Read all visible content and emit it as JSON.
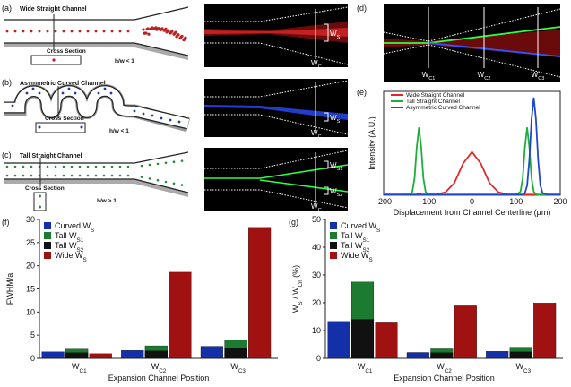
{
  "panels": {
    "a": {
      "label": "(a)",
      "title": "Wide Straight Channel",
      "cross_section": "Cross Section",
      "ratio": "h/w < 1",
      "ws": [
        "W",
        "S"
      ],
      "wc": [
        "W",
        "C"
      ]
    },
    "b": {
      "label": "(b)",
      "title": "Asymmetric Curved Channel",
      "cross_section": "Cross Section",
      "ratio": "h/w < 1",
      "ws": [
        "W",
        "S"
      ],
      "wc": [
        "W",
        "C"
      ]
    },
    "c": {
      "label": "(c)",
      "title": "Tall Straight Channel",
      "cross_section": "Cross Section",
      "ratio": "h/w > 1",
      "ws1": [
        "W",
        "S1"
      ],
      "ws2": [
        "W",
        "S2"
      ],
      "wc": [
        "W",
        "C"
      ]
    },
    "d": {
      "label": "(d)",
      "positions": [
        [
          "W",
          "C1"
        ],
        [
          "W",
          "C2"
        ],
        [
          "W",
          "C3"
        ]
      ]
    }
  },
  "chart_data": [
    {
      "type": "line",
      "label": "(e)",
      "ylabel": "Intensity (A.U.)",
      "xlabel": "Displacement from Channel Centerline (μm)",
      "x": [
        -200,
        -180,
        -160,
        -140,
        -135,
        -130,
        -125,
        -120,
        -115,
        -110,
        -105,
        -100,
        -80,
        -60,
        -40,
        -20,
        0,
        20,
        40,
        60,
        80,
        100,
        110,
        115,
        120,
        125,
        130,
        135,
        140,
        145,
        150,
        155,
        160,
        170,
        180,
        200
      ],
      "xlim": [
        -200,
        200
      ],
      "xticks": [
        -200,
        -100,
        0,
        100,
        200
      ],
      "ylim": [
        0,
        170
      ],
      "legend": "upper left",
      "series": [
        {
          "name": "Wide Straight Channel",
          "color": "#e02a2a",
          "values": [
            1,
            1,
            1,
            1,
            1,
            1,
            1,
            1,
            1,
            1,
            1,
            1,
            1.4,
            5,
            20,
            52,
            71,
            52,
            20,
            5,
            1.4,
            1,
            1,
            1,
            1,
            1,
            1,
            1,
            1,
            1,
            1,
            1,
            1,
            1,
            1,
            1
          ]
        },
        {
          "name": "Tall Straight Channel",
          "color": "#1fae3a",
          "values": [
            1,
            1,
            1,
            1.4,
            6,
            28,
            79,
            111,
            79,
            28,
            6,
            1.4,
            1,
            1,
            1,
            1,
            1,
            1,
            1,
            1,
            1,
            1,
            6,
            28,
            79,
            111,
            79,
            28,
            6,
            1.4,
            1,
            1,
            1,
            1,
            1,
            1
          ]
        },
        {
          "name": "Asymmetric Curved Channel",
          "color": "#1f46d0",
          "values": [
            1,
            1,
            1,
            1,
            1,
            1,
            1,
            3,
            1,
            1,
            1,
            1,
            1,
            1,
            1,
            1,
            1,
            1,
            1,
            1,
            1,
            1,
            1,
            1.3,
            3.7,
            16,
            58,
            124,
            160,
            124,
            58,
            16,
            3.7,
            1,
            1,
            1
          ]
        }
      ]
    },
    {
      "type": "bar",
      "label": "(f)",
      "ylabel": "FWHM/a",
      "xlabel": "Expansion Channel Position",
      "categories": [
        [
          "W",
          "C1"
        ],
        [
          "W",
          "C2"
        ],
        [
          "W",
          "C3"
        ]
      ],
      "ylim": [
        0,
        30
      ],
      "yticks": [
        0,
        5,
        10,
        15,
        20,
        25,
        30
      ],
      "legend": "upper left",
      "series": [
        {
          "name": [
            "Curved W",
            "S"
          ],
          "color": "#1430a8",
          "values": [
            1.4,
            1.7,
            2.6
          ]
        },
        {
          "name": [
            "Tall W",
            "S1"
          ],
          "color": "#1d7a31",
          "values": [
            2.0,
            2.7,
            4.0
          ]
        },
        {
          "name": [
            "Tall W",
            "S2"
          ],
          "color": "#111111",
          "values": [
            1.2,
            1.6,
            2.1
          ]
        },
        {
          "name": [
            "Wide W",
            "S"
          ],
          "color": "#a01212",
          "values": [
            1.0,
            18.6,
            28.3
          ]
        }
      ]
    },
    {
      "type": "bar",
      "label": "(g)",
      "ylabel": [
        "W",
        "S",
        " / W",
        "Cn",
        " (%)"
      ],
      "xlabel": "Expansion Channel Position",
      "categories": [
        [
          "W",
          "C1"
        ],
        [
          "W",
          "C2"
        ],
        [
          "W",
          "C3"
        ]
      ],
      "ylim": [
        0,
        50
      ],
      "yticks": [
        0,
        10,
        20,
        30,
        40,
        50
      ],
      "legend": "upper left",
      "series": [
        {
          "name": [
            "Curved W",
            "S"
          ],
          "color": "#1430a8",
          "values": [
            13.3,
            2.1,
            2.5
          ]
        },
        {
          "name": [
            "Tall W",
            "S1"
          ],
          "color": "#1d7a31",
          "values": [
            27.5,
            3.4,
            4.0
          ]
        },
        {
          "name": [
            "Tall W",
            "S2"
          ],
          "color": "#111111",
          "values": [
            14.0,
            2.0,
            2.3
          ]
        },
        {
          "name": [
            "Wide W",
            "S"
          ],
          "color": "#a01212",
          "values": [
            13.1,
            18.9,
            19.9
          ]
        }
      ]
    }
  ]
}
